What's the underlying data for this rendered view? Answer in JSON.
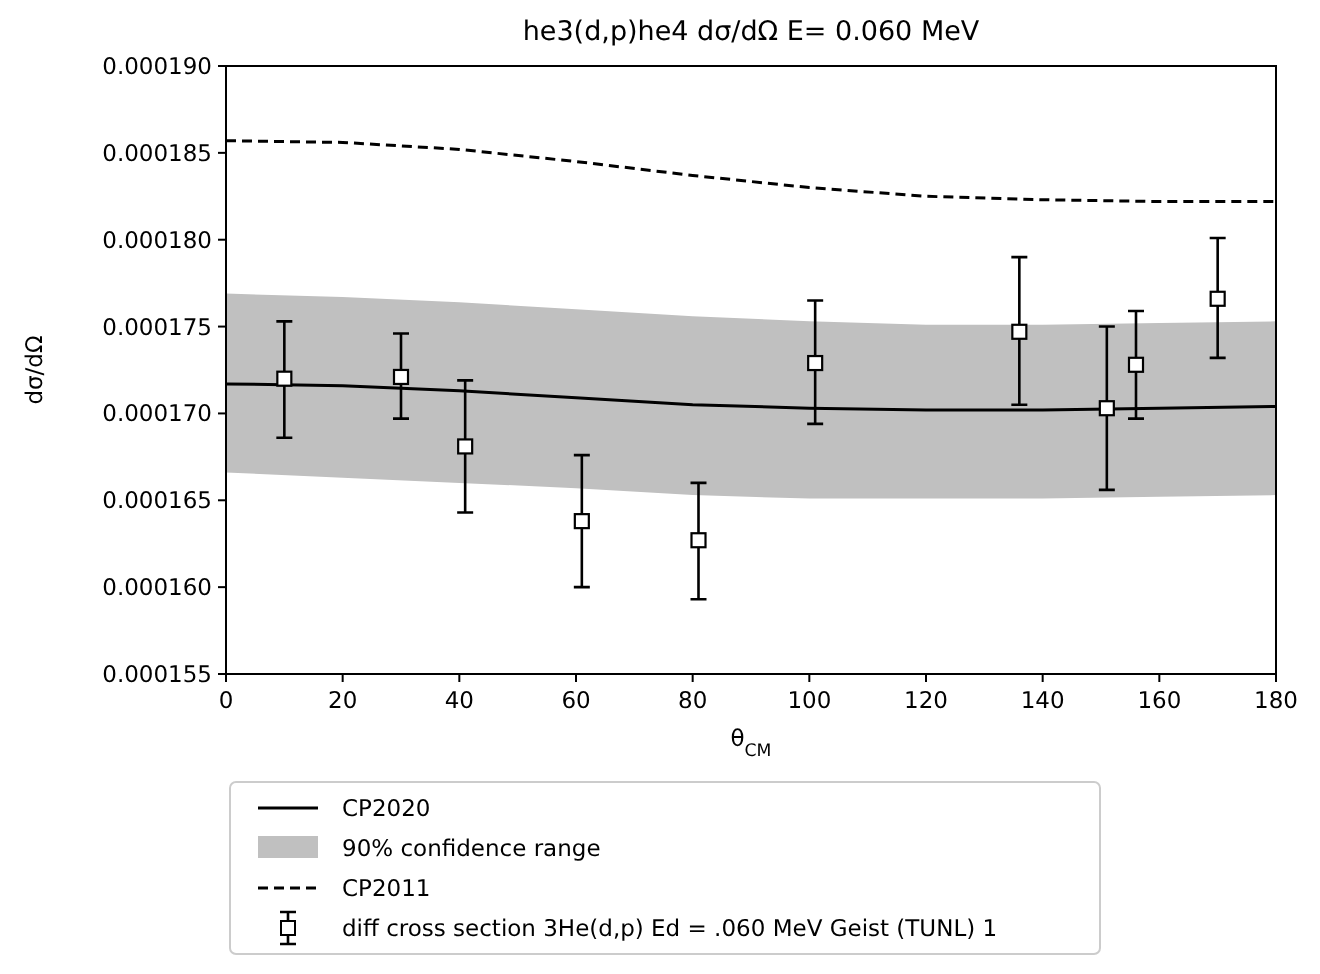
{
  "chart_data": {
    "type": "line",
    "title": "he3(d,p)he4 dσ/dΩ E= 0.060 MeV",
    "xlabel": "θ$_{CM}$",
    "ylabel": "dσ/dΩ",
    "annotations": [
      "90% confidence range"
    ],
    "xlim": [
      0,
      180
    ],
    "xticks": [
      0,
      20,
      40,
      60,
      80,
      100,
      120,
      140,
      160,
      180
    ],
    "ylim": [
      0.000155,
      0.00019
    ],
    "yticks": [
      {
        "value": 0.000155,
        "label": "0.000155"
      },
      {
        "value": 0.00016,
        "label": "0.000160"
      },
      {
        "value": 0.000165,
        "label": "0.000165"
      },
      {
        "value": 0.00017,
        "label": "0.000170"
      },
      {
        "value": 0.000175,
        "label": "0.000175"
      },
      {
        "value": 0.00018,
        "label": "0.000180"
      },
      {
        "value": 0.000185,
        "label": "0.000185"
      },
      {
        "value": 0.00019,
        "label": "0.000190"
      }
    ],
    "legend": "bottom",
    "grid": false,
    "series": [
      {
        "name": "CP2020",
        "color": "#000000",
        "line_style": "solid",
        "x": [
          0,
          20,
          40,
          60,
          80,
          100,
          120,
          140,
          160,
          180
        ],
        "values": [
          0.0001717,
          0.0001716,
          0.0001713,
          0.0001709,
          0.0001705,
          0.0001703,
          0.0001702,
          0.0001702,
          0.0001703,
          0.0001704
        ],
        "lower": [
          0.0001666,
          0.0001663,
          0.000166,
          0.0001657,
          0.0001653,
          0.0001651,
          0.0001651,
          0.0001651,
          0.0001652,
          0.0001653
        ],
        "upper": [
          0.0001769,
          0.0001767,
          0.0001764,
          0.000176,
          0.0001756,
          0.0001753,
          0.0001751,
          0.0001751,
          0.0001752,
          0.0001753
        ]
      },
      {
        "name": "CP2011",
        "color": "#000000",
        "line_style": "dashed",
        "x": [
          0,
          20,
          40,
          60,
          80,
          100,
          120,
          140,
          160,
          180
        ],
        "values": [
          0.0001857,
          0.0001856,
          0.0001852,
          0.0001845,
          0.0001837,
          0.000183,
          0.0001825,
          0.0001823,
          0.0001822,
          0.0001822
        ]
      },
      {
        "type": "scatter",
        "name": "diff cross section 3He(d,p) Ed = .060 MeV Geist (TUNL) 1",
        "color": "#000000",
        "marker": "square",
        "x": [
          10,
          30,
          41,
          61,
          81,
          101,
          136,
          151,
          156,
          170
        ],
        "values": [
          0.000172,
          0.0001721,
          0.0001681,
          0.0001638,
          0.0001627,
          0.0001729,
          0.0001747,
          0.0001703,
          0.0001728,
          0.0001766
        ],
        "errors": [
          [
            0.0001686,
            0.0001753
          ],
          [
            0.0001697,
            0.0001746
          ],
          [
            0.0001643,
            0.0001719
          ],
          [
            0.00016,
            0.0001676
          ],
          [
            0.0001593,
            0.000166
          ],
          [
            0.0001694,
            0.0001765
          ],
          [
            0.0001705,
            0.000179
          ],
          [
            0.0001656,
            0.000175
          ],
          [
            0.0001697,
            0.0001759
          ],
          [
            0.0001732,
            0.0001801
          ]
        ]
      }
    ]
  }
}
